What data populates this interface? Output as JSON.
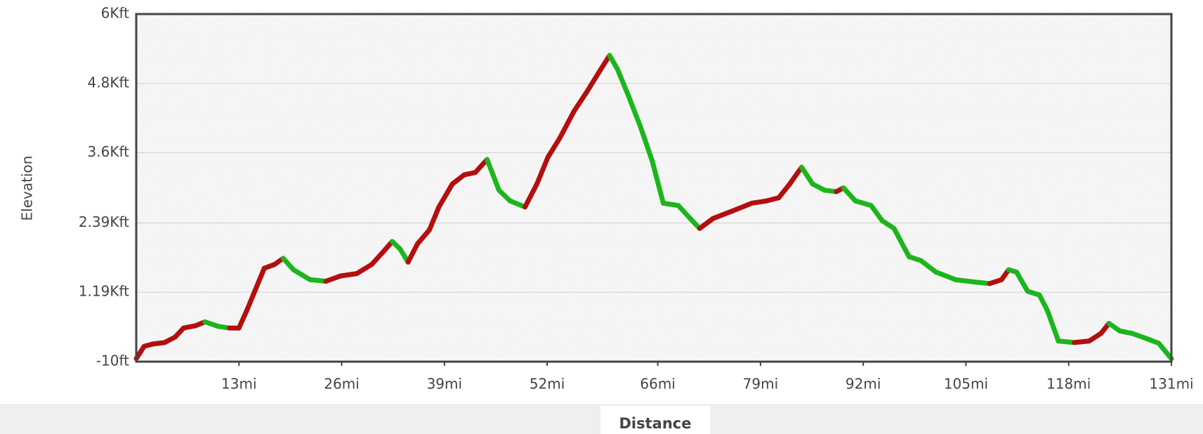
{
  "chart_data": {
    "type": "line",
    "x_label": "Distance",
    "y_label": "Elevation",
    "x": [
      0,
      1.0,
      2.1,
      3.6,
      4.9,
      6.0,
      7.5,
      8.7,
      10.4,
      11.8,
      13.0,
      14.0,
      14.8,
      16.2,
      17.5,
      18.6,
      19.9,
      22.0,
      24.0,
      25.9,
      27.9,
      29.8,
      31.3,
      32.4,
      33.4,
      34.4,
      35.6,
      37.1,
      38.3,
      40.0,
      41.5,
      42.9,
      44.4,
      45.9,
      47.3,
      49.2,
      50.7,
      52.1,
      53.6,
      55.4,
      57.0,
      58.5,
      59.9,
      60.9,
      62.3,
      63.8,
      65.3,
      66.7,
      68.6,
      70.1,
      71.3,
      73.0,
      75.5,
      77.9,
      79.8,
      81.3,
      82.7,
      84.2,
      85.6,
      87.1,
      88.6,
      89.5,
      91.0,
      93.0,
      94.4,
      95.9,
      97.8,
      99.3,
      101.2,
      103.7,
      106.1,
      108.0,
      109.5,
      110.4,
      111.4,
      112.8,
      114.3,
      115.3,
      116.7,
      118.7,
      120.6,
      122.1,
      123.1,
      124.5,
      126.0,
      127.9,
      129.4,
      131.0
    ],
    "series": [
      {
        "values": [
          43,
          255,
          295,
          321,
          414,
          572,
          612,
          678,
          599,
          572,
          572,
          877,
          1142,
          1605,
          1671,
          1777,
          1579,
          1407,
          1380,
          1473,
          1512,
          1671,
          1896,
          2068,
          1936,
          1711,
          2029,
          2267,
          2664,
          3061,
          3220,
          3260,
          3485,
          2955,
          2770,
          2664,
          3061,
          3525,
          3856,
          4319,
          4650,
          4981,
          5285,
          5047,
          4584,
          4054,
          3459,
          2730,
          2690,
          2466,
          2293,
          2466,
          2598,
          2730,
          2770,
          2823,
          3061,
          3352,
          3061,
          2955,
          2929,
          2995,
          2770,
          2690,
          2426,
          2293,
          1804,
          1738,
          1539,
          1407,
          1367,
          1340,
          1407,
          1579,
          1539,
          1208,
          1142,
          877,
          347,
          321,
          347,
          480,
          652,
          520,
          480,
          387,
          308,
          43
        ],
        "up_color": "#b30f0f",
        "down_color": "#1db51d"
      }
    ],
    "xlim": [
      0,
      131
    ],
    "xticks": [
      {
        "value": 13,
        "label": "13mi"
      },
      {
        "value": 26,
        "label": "26mi"
      },
      {
        "value": 39,
        "label": "39mi"
      },
      {
        "value": 52,
        "label": "52mi"
      },
      {
        "value": 66,
        "label": "66mi"
      },
      {
        "value": 79,
        "label": "79mi"
      },
      {
        "value": 92,
        "label": "92mi"
      },
      {
        "value": 105,
        "label": "105mi"
      },
      {
        "value": 118,
        "label": "118mi"
      },
      {
        "value": 131,
        "label": "131mi"
      }
    ],
    "ylim": [
      -10,
      6000
    ],
    "yticks": [
      {
        "value": -10,
        "label": "-10ft"
      },
      {
        "value": 1190,
        "label": "1.19Kft"
      },
      {
        "value": 2390,
        "label": "2.39Kft"
      },
      {
        "value": 3600,
        "label": "3.6Kft"
      },
      {
        "value": 4800,
        "label": "4.8Kft"
      },
      {
        "value": 6000,
        "label": "6Kft"
      }
    ],
    "grid": true
  }
}
